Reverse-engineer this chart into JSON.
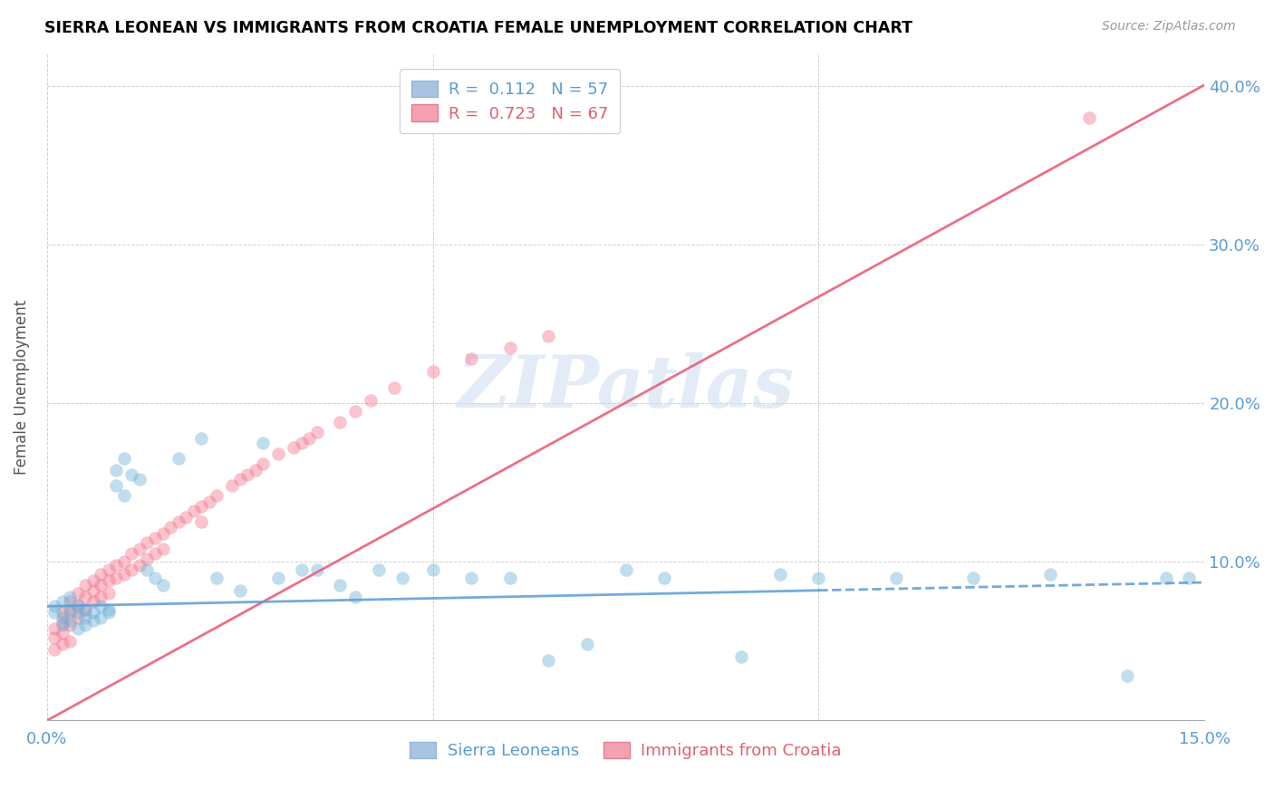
{
  "title": "SIERRA LEONEAN VS IMMIGRANTS FROM CROATIA FEMALE UNEMPLOYMENT CORRELATION CHART",
  "source": "Source: ZipAtlas.com",
  "ylabel": "Female Unemployment",
  "x_min": 0.0,
  "x_max": 0.15,
  "y_min": 0.0,
  "y_max": 0.42,
  "sierra_color": "#6aaed6",
  "croatia_color": "#f4708a",
  "sierra_line_color": "#5b9bd5",
  "croatia_line_color": "#e8607a",
  "watermark_text": "ZIPatlas",
  "legend_R1": "0.112",
  "legend_N1": "57",
  "legend_R2": "0.723",
  "legend_N2": "67",
  "sierra_scatter_x": [
    0.001,
    0.001,
    0.002,
    0.002,
    0.002,
    0.003,
    0.003,
    0.003,
    0.004,
    0.004,
    0.004,
    0.005,
    0.005,
    0.005,
    0.006,
    0.006,
    0.007,
    0.007,
    0.008,
    0.008,
    0.009,
    0.009,
    0.01,
    0.01,
    0.011,
    0.012,
    0.013,
    0.014,
    0.015,
    0.017,
    0.02,
    0.022,
    0.025,
    0.028,
    0.03,
    0.033,
    0.035,
    0.038,
    0.04,
    0.043,
    0.046,
    0.05,
    0.055,
    0.06,
    0.065,
    0.07,
    0.075,
    0.08,
    0.09,
    0.095,
    0.1,
    0.11,
    0.12,
    0.13,
    0.14,
    0.145,
    0.148
  ],
  "sierra_scatter_y": [
    0.072,
    0.068,
    0.075,
    0.065,
    0.06,
    0.07,
    0.078,
    0.063,
    0.068,
    0.073,
    0.058,
    0.065,
    0.07,
    0.06,
    0.068,
    0.063,
    0.072,
    0.065,
    0.07,
    0.068,
    0.158,
    0.148,
    0.142,
    0.165,
    0.155,
    0.152,
    0.095,
    0.09,
    0.085,
    0.165,
    0.178,
    0.09,
    0.082,
    0.175,
    0.09,
    0.095,
    0.095,
    0.085,
    0.078,
    0.095,
    0.09,
    0.095,
    0.09,
    0.09,
    0.038,
    0.048,
    0.095,
    0.09,
    0.04,
    0.092,
    0.09,
    0.09,
    0.09,
    0.092,
    0.028,
    0.09,
    0.09
  ],
  "croatia_scatter_x": [
    0.001,
    0.001,
    0.001,
    0.002,
    0.002,
    0.002,
    0.002,
    0.003,
    0.003,
    0.003,
    0.003,
    0.004,
    0.004,
    0.004,
    0.005,
    0.005,
    0.005,
    0.006,
    0.006,
    0.006,
    0.007,
    0.007,
    0.007,
    0.008,
    0.008,
    0.008,
    0.009,
    0.009,
    0.01,
    0.01,
    0.011,
    0.011,
    0.012,
    0.012,
    0.013,
    0.013,
    0.014,
    0.014,
    0.015,
    0.015,
    0.016,
    0.017,
    0.018,
    0.019,
    0.02,
    0.02,
    0.021,
    0.022,
    0.024,
    0.025,
    0.026,
    0.027,
    0.028,
    0.03,
    0.032,
    0.033,
    0.034,
    0.035,
    0.038,
    0.04,
    0.042,
    0.045,
    0.05,
    0.055,
    0.06,
    0.065,
    0.135
  ],
  "croatia_scatter_y": [
    0.058,
    0.052,
    0.045,
    0.068,
    0.062,
    0.055,
    0.048,
    0.075,
    0.068,
    0.06,
    0.05,
    0.08,
    0.072,
    0.065,
    0.085,
    0.078,
    0.07,
    0.088,
    0.082,
    0.075,
    0.092,
    0.085,
    0.078,
    0.095,
    0.088,
    0.08,
    0.098,
    0.09,
    0.1,
    0.092,
    0.105,
    0.095,
    0.108,
    0.098,
    0.112,
    0.102,
    0.115,
    0.105,
    0.118,
    0.108,
    0.122,
    0.125,
    0.128,
    0.132,
    0.135,
    0.125,
    0.138,
    0.142,
    0.148,
    0.152,
    0.155,
    0.158,
    0.162,
    0.168,
    0.172,
    0.175,
    0.178,
    0.182,
    0.188,
    0.195,
    0.202,
    0.21,
    0.22,
    0.228,
    0.235,
    0.242,
    0.38
  ]
}
